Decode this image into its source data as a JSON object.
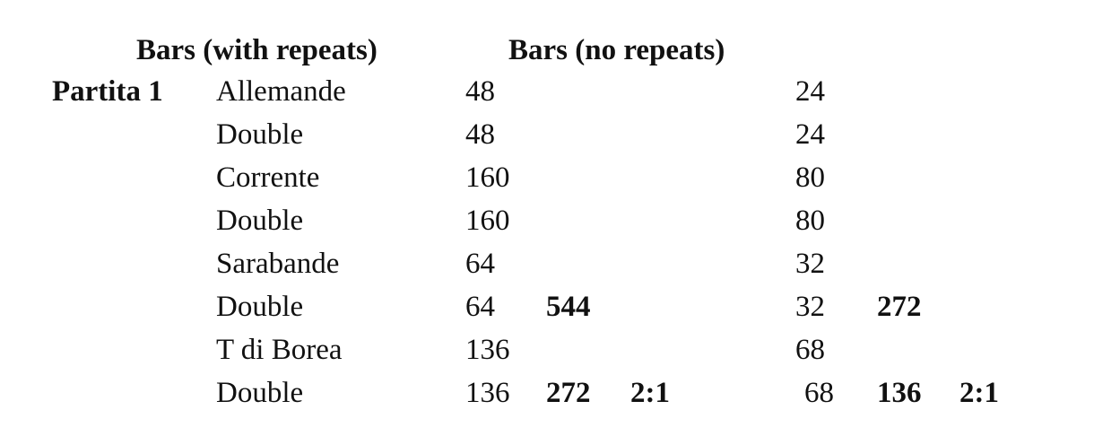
{
  "headers": {
    "with_repeats": "Bars (with repeats)",
    "no_repeats": "Bars (no repeats)"
  },
  "group_label": "Partita 1",
  "rows": [
    {
      "movement": "Allemande",
      "with": "48",
      "with_total": "",
      "with_ratio": "",
      "no": "24",
      "no_total": "",
      "no_ratio": ""
    },
    {
      "movement": "Double",
      "with": "48",
      "with_total": "",
      "with_ratio": "",
      "no": "24",
      "no_total": "",
      "no_ratio": ""
    },
    {
      "movement": "Corrente",
      "with": "160",
      "with_total": "",
      "with_ratio": "",
      "no": "80",
      "no_total": "",
      "no_ratio": ""
    },
    {
      "movement": "Double",
      "with": "160",
      "with_total": "",
      "with_ratio": "",
      "no": "80",
      "no_total": "",
      "no_ratio": ""
    },
    {
      "movement": "Sarabande",
      "with": "64",
      "with_total": "",
      "with_ratio": "",
      "no": "32",
      "no_total": "",
      "no_ratio": ""
    },
    {
      "movement": "Double",
      "with": "64",
      "with_total": "544",
      "with_ratio": "",
      "no": "32",
      "no_total": "272",
      "no_ratio": ""
    },
    {
      "movement": "T di Borea",
      "with": "136",
      "with_total": "",
      "with_ratio": "",
      "no": "68",
      "no_total": "",
      "no_ratio": ""
    },
    {
      "movement": "Double",
      "with": "136",
      "with_total": "272",
      "with_ratio": "2:1",
      "no": "68",
      "no_total": "136",
      "no_ratio": "2:1"
    }
  ]
}
